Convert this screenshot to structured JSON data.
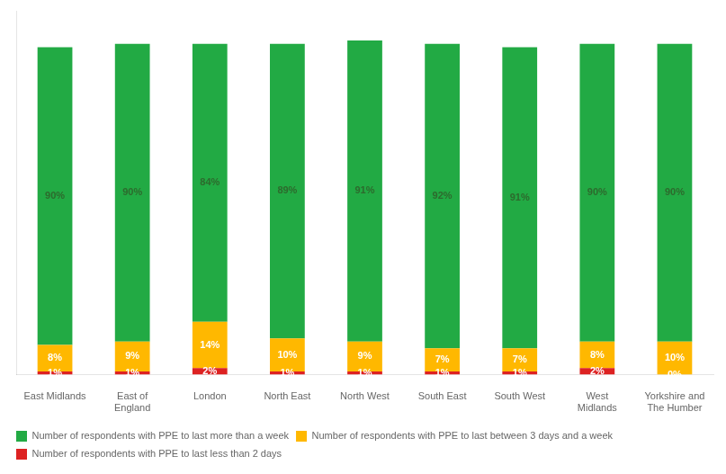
{
  "chart_data": {
    "type": "bar",
    "stacked": true,
    "categories": [
      "East Midlands",
      "East of\nEngland",
      "London",
      "North East",
      "North West",
      "South East",
      "South West",
      "West\nMidlands",
      "Yorkshire and\nThe Humber"
    ],
    "series": [
      {
        "name": "Number of respondents with PPE to last less than 2 days",
        "color": "#DD2222",
        "values": [
          1,
          1,
          2,
          1,
          1,
          1,
          1,
          2,
          0
        ],
        "value_labels": [
          "1%",
          "1%",
          "2%",
          "1%",
          "1%",
          "1%",
          "1%",
          "2%",
          "0%"
        ]
      },
      {
        "name": "Number of respondents with PPE to last between 3 days and a week",
        "color": "#FFB800",
        "values": [
          8,
          9,
          14,
          10,
          9,
          7,
          7,
          8,
          10
        ],
        "value_labels": [
          "8%",
          "9%",
          "14%",
          "10%",
          "9%",
          "7%",
          "7%",
          "8%",
          "10%"
        ]
      },
      {
        "name": "Number of respondents with PPE to last more than a week",
        "color": "#22aa44",
        "values": [
          90,
          90,
          84,
          89,
          91,
          92,
          91,
          90,
          90
        ],
        "value_labels": [
          "90%",
          "90%",
          "84%",
          "89%",
          "91%",
          "92%",
          "91%",
          "90%",
          "90%"
        ]
      }
    ],
    "ylim": [
      0,
      110
    ],
    "grid": false,
    "legend": "lower left",
    "data_labels": true,
    "tick_labels": "x"
  }
}
